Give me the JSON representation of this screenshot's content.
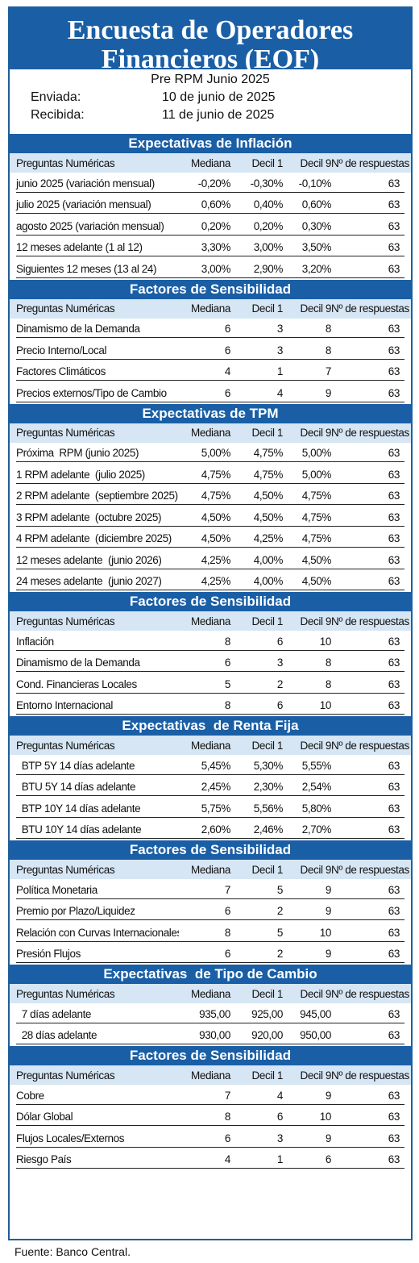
{
  "title_line1": "Encuesta de Operadores",
  "title_line2": "Financieros (EOF)",
  "subtitle": "Pre RPM Junio 2025",
  "sent_label": "Enviada:",
  "sent_date": "10 de junio de 2025",
  "received_label": "Recibida:",
  "received_date": "11 de junio de 2025",
  "footer": "Fuente: Banco Central.",
  "sections": [
    {
      "title": "Expectativas de Inflación",
      "headers": [
        "Preguntas Numéricas",
        "Mediana",
        "Decil 1",
        "Decil 9",
        "Nº de respuestas"
      ],
      "rows": [
        [
          "junio 2025 (variación mensual)",
          "-0,20%",
          "-0,30%",
          "-0,10%",
          "63"
        ],
        [
          "julio 2025 (variación mensual)",
          "0,60%",
          "0,40%",
          "0,60%",
          "63"
        ],
        [
          "agosto 2025 (variación mensual)",
          "0,20%",
          "0,20%",
          "0,30%",
          "63"
        ],
        [
          "12 meses adelante (1 al 12)",
          "3,30%",
          "3,00%",
          "3,50%",
          "63"
        ],
        [
          "Siguientes 12 meses (13 al 24)",
          "3,00%",
          "2,90%",
          "3,20%",
          "63"
        ]
      ]
    },
    {
      "title": "Factores de Sensibilidad",
      "headers": [
        "Preguntas Numéricas",
        "Mediana",
        "Decil 1",
        "Decil 9",
        "Nº de respuestas"
      ],
      "rows": [
        [
          "Dinamismo de la Demanda",
          "6",
          "3",
          "8",
          "63"
        ],
        [
          "Precio Interno/Local",
          "6",
          "3",
          "8",
          "63"
        ],
        [
          "Factores Climáticos",
          "4",
          "1",
          "7",
          "63"
        ],
        [
          "Precios externos/Tipo de Cambio",
          "6",
          "4",
          "9",
          "63"
        ]
      ]
    },
    {
      "title": "Expectativas de TPM",
      "headers": [
        "Preguntas Numéricas",
        "Mediana",
        "Decil 1",
        "Decil 9",
        "Nº de respuestas"
      ],
      "rows": [
        [
          "Próxima  RPM (junio 2025)",
          "5,00%",
          "4,75%",
          "5,00%",
          "63"
        ],
        [
          "1 RPM adelante  (julio 2025)",
          "4,75%",
          "4,75%",
          "5,00%",
          "63"
        ],
        [
          "2 RPM adelante  (septiembre 2025)",
          "4,75%",
          "4,50%",
          "4,75%",
          "63"
        ],
        [
          "3 RPM adelante  (octubre 2025)",
          "4,50%",
          "4,50%",
          "4,75%",
          "63"
        ],
        [
          "4 RPM adelante  (diciembre 2025)",
          "4,50%",
          "4,25%",
          "4,75%",
          "63"
        ],
        [
          "12 meses adelante  (junio 2026)",
          "4,25%",
          "4,00%",
          "4,50%",
          "63"
        ],
        [
          "24 meses adelante  (junio 2027)",
          "4,25%",
          "4,00%",
          "4,50%",
          "63"
        ]
      ]
    },
    {
      "title": "Factores de Sensibilidad",
      "headers": [
        "Preguntas Numéricas",
        "Mediana",
        "Decil 1",
        "Decil 9",
        "Nº de respuestas"
      ],
      "rows": [
        [
          "Inflación",
          "8",
          "6",
          "10",
          "63"
        ],
        [
          "Dinamismo de la Demanda",
          "6",
          "3",
          "8",
          "63"
        ],
        [
          "Cond. Financieras Locales",
          "5",
          "2",
          "8",
          "63"
        ],
        [
          "Entorno Internacional",
          "8",
          "6",
          "10",
          "63"
        ]
      ]
    },
    {
      "title": "Expectativas  de Renta Fija",
      "headers": [
        "Preguntas Numéricas",
        "Mediana",
        "Decil 1",
        "Decil 9",
        "Nº de respuestas"
      ],
      "rows": [
        [
          "  BTP 5Y 14 días adelante",
          "5,45%",
          "5,30%",
          "5,55%",
          "63"
        ],
        [
          "  BTU 5Y 14 días adelante",
          "2,45%",
          "2,30%",
          "2,54%",
          "63"
        ],
        [
          "  BTP 10Y 14 días adelante",
          "5,75%",
          "5,56%",
          "5,80%",
          "63"
        ],
        [
          "  BTU 10Y 14 días adelante",
          "2,60%",
          "2,46%",
          "2,70%",
          "63"
        ]
      ]
    },
    {
      "title": "Factores de Sensibilidad",
      "headers": [
        "Preguntas Numéricas",
        "Mediana",
        "Decil 1",
        "Decil 9",
        "Nº de respuestas"
      ],
      "rows": [
        [
          "Política Monetaria",
          "7",
          "5",
          "9",
          "63"
        ],
        [
          "Premio por Plazo/Liquidez",
          "6",
          "2",
          "9",
          "63"
        ],
        [
          "Relación con Curvas Internacionales",
          "8",
          "5",
          "10",
          "63"
        ],
        [
          "Presión Flujos",
          "6",
          "2",
          "9",
          "63"
        ]
      ]
    },
    {
      "title": "Expectativas  de Tipo de Cambio",
      "headers": [
        "Preguntas Numéricas",
        "Mediana",
        "Decil 1",
        "Decil 9",
        "Nº de respuestas"
      ],
      "rows": [
        [
          "  7 días adelante",
          "935,00",
          "925,00",
          "945,00",
          "63"
        ],
        [
          "  28 días adelante",
          "930,00",
          "920,00",
          "950,00",
          "63"
        ]
      ]
    },
    {
      "title": "Factores de Sensibilidad",
      "headers": [
        "Preguntas Numéricas",
        "Mediana",
        "Decil 1",
        "Decil 9",
        "Nº de respuestas"
      ],
      "rows": [
        [
          "Cobre",
          "7",
          "4",
          "9",
          "63"
        ],
        [
          "Dólar Global",
          "8",
          "6",
          "10",
          "63"
        ],
        [
          "Flujos Locales/Externos",
          "6",
          "3",
          "9",
          "63"
        ],
        [
          "Riesgo País",
          "4",
          "1",
          "6",
          "63"
        ]
      ]
    }
  ]
}
